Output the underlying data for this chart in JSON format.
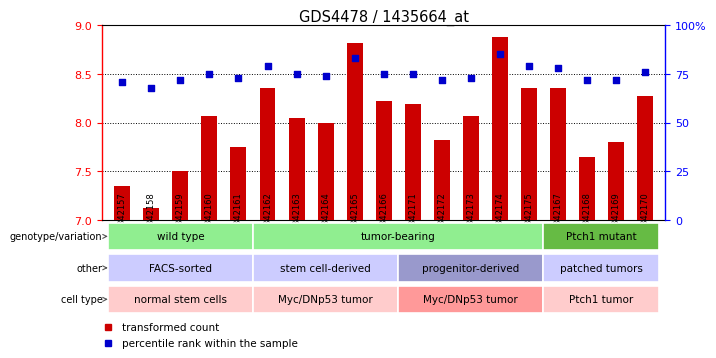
{
  "title": "GDS4478 / 1435664_at",
  "samples": [
    "GSM842157",
    "GSM842158",
    "GSM842159",
    "GSM842160",
    "GSM842161",
    "GSM842162",
    "GSM842163",
    "GSM842164",
    "GSM842165",
    "GSM842166",
    "GSM842171",
    "GSM842172",
    "GSM842173",
    "GSM842174",
    "GSM842175",
    "GSM842167",
    "GSM842168",
    "GSM842169",
    "GSM842170"
  ],
  "bar_values": [
    7.35,
    7.12,
    7.5,
    8.07,
    7.75,
    8.35,
    8.05,
    8.0,
    8.82,
    8.22,
    8.19,
    7.82,
    8.07,
    8.88,
    8.35,
    8.35,
    7.65,
    7.8,
    8.27
  ],
  "dot_values": [
    71,
    68,
    72,
    75,
    73,
    79,
    75,
    74,
    83,
    75,
    75,
    72,
    73,
    85,
    79,
    78,
    72,
    72,
    76
  ],
  "bar_color": "#CC0000",
  "dot_color": "#0000CC",
  "ylim_left": [
    7.0,
    9.0
  ],
  "ylim_right": [
    0,
    100
  ],
  "yticks_left": [
    7.0,
    7.5,
    8.0,
    8.5,
    9.0
  ],
  "yticks_right": [
    0,
    25,
    50,
    75,
    100
  ],
  "ytick_labels_right": [
    "0",
    "25",
    "50",
    "75",
    "100%"
  ],
  "grid_lines": [
    7.5,
    8.0,
    8.5
  ],
  "group_boxes": [
    {
      "label": "wild type",
      "start": 0,
      "end": 5,
      "color": "#90EE90",
      "row": "genotype"
    },
    {
      "label": "tumor-bearing",
      "start": 5,
      "end": 15,
      "color": "#90EE90",
      "row": "genotype"
    },
    {
      "label": "Ptch1 mutant",
      "start": 15,
      "end": 19,
      "color": "#66BB44",
      "row": "genotype"
    },
    {
      "label": "FACS-sorted",
      "start": 0,
      "end": 5,
      "color": "#CCCCFF",
      "row": "other"
    },
    {
      "label": "stem cell-derived",
      "start": 5,
      "end": 10,
      "color": "#CCCCFF",
      "row": "other"
    },
    {
      "label": "progenitor-derived",
      "start": 10,
      "end": 15,
      "color": "#9999CC",
      "row": "other"
    },
    {
      "label": "patched tumors",
      "start": 15,
      "end": 19,
      "color": "#CCCCFF",
      "row": "other"
    },
    {
      "label": "normal stem cells",
      "start": 0,
      "end": 5,
      "color": "#FFCCCC",
      "row": "cell"
    },
    {
      "label": "Myc/DNp53 tumor",
      "start": 5,
      "end": 10,
      "color": "#FFCCCC",
      "row": "cell"
    },
    {
      "label": "Myc/DNp53 tumor",
      "start": 10,
      "end": 15,
      "color": "#FF9999",
      "row": "cell"
    },
    {
      "label": "Ptch1 tumor",
      "start": 15,
      "end": 19,
      "color": "#FFCCCC",
      "row": "cell"
    }
  ],
  "row_labels": [
    {
      "label": "genotype/variation",
      "row": "genotype"
    },
    {
      "label": "other",
      "row": "other"
    },
    {
      "label": "cell type",
      "row": "cell"
    }
  ],
  "legend": [
    {
      "color": "#CC0000",
      "label": "transformed count"
    },
    {
      "color": "#0000CC",
      "label": "percentile rank within the sample"
    }
  ],
  "bar_width": 0.55,
  "xtick_bg": "#DDDDDD"
}
